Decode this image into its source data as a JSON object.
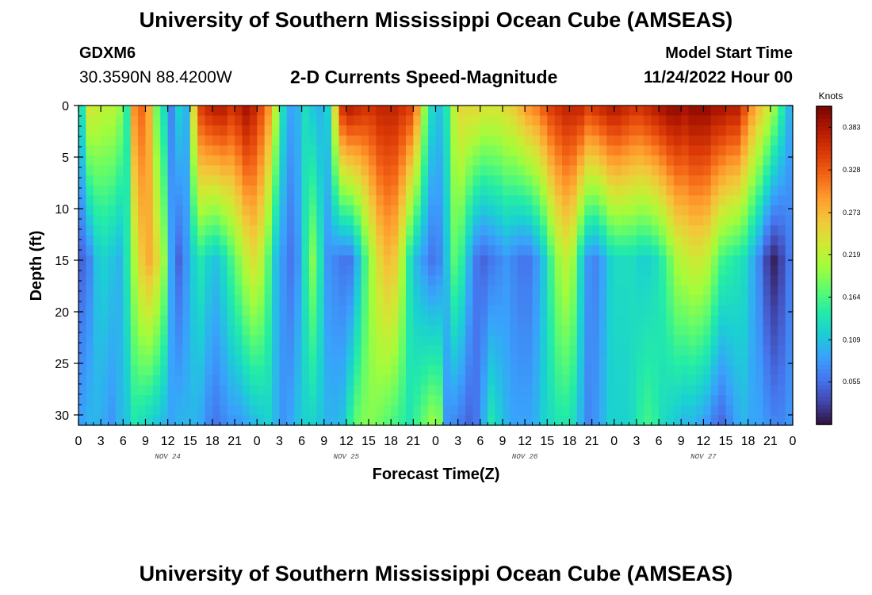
{
  "header": {
    "title": "University of Southern Mississippi Ocean Cube (AMSEAS)",
    "station": "GDXM6",
    "coords": "30.3590N  88.4200W",
    "subtitle": "2-D Currents Speed-Magnitude",
    "model_start_label": "Model Start Time",
    "model_start_value": "11/24/2022 Hour 00"
  },
  "footer": {
    "title": "University of Southern Mississippi Ocean Cube (AMSEAS)"
  },
  "chart_data": {
    "type": "heatmap",
    "title": "2-D Currents Speed-Magnitude",
    "xlabel": "Forecast Time(Z)",
    "ylabel": "Depth (ft)",
    "x_tick_labels": [
      "0",
      "3",
      "6",
      "9",
      "12",
      "15",
      "18",
      "21",
      "0",
      "3",
      "6",
      "9",
      "12",
      "15",
      "18",
      "21",
      "0",
      "3",
      "6",
      "9",
      "12",
      "15",
      "18",
      "21",
      "0",
      "3",
      "6",
      "9",
      "12",
      "15",
      "18",
      "21",
      "0"
    ],
    "day_labels": [
      "NOV 24",
      "NOV 25",
      "NOV 26",
      "NOV 27"
    ],
    "xlim_hours": [
      0,
      96
    ],
    "ylim": [
      31,
      0
    ],
    "y_ticks": [
      0,
      5,
      10,
      15,
      20,
      25,
      30
    ],
    "colorbar": {
      "unit": "Knots",
      "ticks": [
        0.383,
        0.328,
        0.273,
        0.219,
        0.164,
        0.109,
        0.055
      ],
      "range": [
        0.0,
        0.41
      ]
    },
    "colormap": [
      "#30123b",
      "#4145ab",
      "#4675ed",
      "#39a2fc",
      "#1bcfd4",
      "#24eca6",
      "#61fc6c",
      "#a4fc3b",
      "#d1e834",
      "#f3c63a",
      "#fe9b2d",
      "#f36315",
      "#d93806",
      "#b11901",
      "#7a0402"
    ],
    "columns": [
      {
        "t": 0,
        "surf": 0.14,
        "mid": 0.05,
        "bot": 0.09
      },
      {
        "t": 1,
        "surf": 0.24,
        "mid": 0.07,
        "bot": 0.1
      },
      {
        "t": 2,
        "surf": 0.23,
        "mid": 0.11,
        "bot": 0.1
      },
      {
        "t": 3,
        "surf": 0.22,
        "mid": 0.12,
        "bot": 0.09
      },
      {
        "t": 4,
        "surf": 0.22,
        "mid": 0.11,
        "bot": 0.08
      },
      {
        "t": 5,
        "surf": 0.2,
        "mid": 0.1,
        "bot": 0.1
      },
      {
        "t": 6,
        "surf": 0.15,
        "mid": 0.14,
        "bot": 0.11
      },
      {
        "t": 7,
        "surf": 0.3,
        "mid": 0.21,
        "bot": 0.14
      },
      {
        "t": 8,
        "surf": 0.32,
        "mid": 0.26,
        "bot": 0.13
      },
      {
        "t": 9,
        "surf": 0.28,
        "mid": 0.28,
        "bot": 0.12
      },
      {
        "t": 10,
        "surf": 0.18,
        "mid": 0.25,
        "bot": 0.11
      },
      {
        "t": 11,
        "surf": 0.13,
        "mid": 0.2,
        "bot": 0.1
      },
      {
        "t": 12,
        "surf": 0.07,
        "mid": 0.09,
        "bot": 0.09
      },
      {
        "t": 13,
        "surf": 0.12,
        "mid": 0.05,
        "bot": 0.1
      },
      {
        "t": 14,
        "surf": 0.1,
        "mid": 0.08,
        "bot": 0.1
      },
      {
        "t": 15,
        "surf": 0.25,
        "mid": 0.12,
        "bot": 0.1
      },
      {
        "t": 16,
        "surf": 0.35,
        "mid": 0.14,
        "bot": 0.09
      },
      {
        "t": 17,
        "surf": 0.37,
        "mid": 0.12,
        "bot": 0.07
      },
      {
        "t": 18,
        "surf": 0.38,
        "mid": 0.11,
        "bot": 0.06
      },
      {
        "t": 19,
        "surf": 0.38,
        "mid": 0.13,
        "bot": 0.07
      },
      {
        "t": 20,
        "surf": 0.36,
        "mid": 0.16,
        "bot": 0.08
      },
      {
        "t": 21,
        "surf": 0.37,
        "mid": 0.19,
        "bot": 0.08
      },
      {
        "t": 22,
        "surf": 0.39,
        "mid": 0.22,
        "bot": 0.09
      },
      {
        "t": 23,
        "surf": 0.37,
        "mid": 0.24,
        "bot": 0.1
      },
      {
        "t": 24,
        "surf": 0.34,
        "mid": 0.22,
        "bot": 0.11
      },
      {
        "t": 25,
        "surf": 0.3,
        "mid": 0.17,
        "bot": 0.12
      },
      {
        "t": 26,
        "surf": 0.22,
        "mid": 0.11,
        "bot": 0.1
      },
      {
        "t": 27,
        "surf": 0.13,
        "mid": 0.08,
        "bot": 0.08
      },
      {
        "t": 28,
        "surf": 0.09,
        "mid": 0.06,
        "bot": 0.09
      },
      {
        "t": 29,
        "surf": 0.1,
        "mid": 0.08,
        "bot": 0.11
      },
      {
        "t": 30,
        "surf": 0.13,
        "mid": 0.14,
        "bot": 0.12
      },
      {
        "t": 31,
        "surf": 0.11,
        "mid": 0.19,
        "bot": 0.12
      },
      {
        "t": 32,
        "surf": 0.1,
        "mid": 0.14,
        "bot": 0.11
      },
      {
        "t": 33,
        "surf": 0.12,
        "mid": 0.08,
        "bot": 0.1
      },
      {
        "t": 34,
        "surf": 0.25,
        "mid": 0.07,
        "bot": 0.1
      },
      {
        "t": 35,
        "surf": 0.36,
        "mid": 0.06,
        "bot": 0.11
      },
      {
        "t": 36,
        "surf": 0.38,
        "mid": 0.06,
        "bot": 0.15
      },
      {
        "t": 37,
        "surf": 0.37,
        "mid": 0.1,
        "bot": 0.18
      },
      {
        "t": 38,
        "surf": 0.36,
        "mid": 0.16,
        "bot": 0.19
      },
      {
        "t": 39,
        "surf": 0.36,
        "mid": 0.21,
        "bot": 0.19
      },
      {
        "t": 40,
        "surf": 0.37,
        "mid": 0.25,
        "bot": 0.18
      },
      {
        "t": 41,
        "surf": 0.37,
        "mid": 0.27,
        "bot": 0.17
      },
      {
        "t": 42,
        "surf": 0.37,
        "mid": 0.26,
        "bot": 0.16
      },
      {
        "t": 43,
        "surf": 0.36,
        "mid": 0.21,
        "bot": 0.15
      },
      {
        "t": 44,
        "surf": 0.35,
        "mid": 0.14,
        "bot": 0.14
      },
      {
        "t": 45,
        "surf": 0.3,
        "mid": 0.1,
        "bot": 0.16
      },
      {
        "t": 46,
        "surf": 0.2,
        "mid": 0.08,
        "bot": 0.18
      },
      {
        "t": 47,
        "surf": 0.13,
        "mid": 0.06,
        "bot": 0.2
      },
      {
        "t": 48,
        "surf": 0.11,
        "mid": 0.07,
        "bot": 0.19
      },
      {
        "t": 49,
        "surf": 0.14,
        "mid": 0.11,
        "bot": 0.08
      },
      {
        "t": 50,
        "surf": 0.22,
        "mid": 0.17,
        "bot": 0.07
      },
      {
        "t": 51,
        "surf": 0.25,
        "mid": 0.15,
        "bot": 0.06
      },
      {
        "t": 52,
        "surf": 0.25,
        "mid": 0.1,
        "bot": 0.05
      },
      {
        "t": 53,
        "surf": 0.25,
        "mid": 0.06,
        "bot": 0.06
      },
      {
        "t": 54,
        "surf": 0.24,
        "mid": 0.05,
        "bot": 0.1
      },
      {
        "t": 55,
        "surf": 0.24,
        "mid": 0.06,
        "bot": 0.14
      },
      {
        "t": 56,
        "surf": 0.24,
        "mid": 0.07,
        "bot": 0.12
      },
      {
        "t": 57,
        "surf": 0.25,
        "mid": 0.08,
        "bot": 0.1
      },
      {
        "t": 58,
        "surf": 0.26,
        "mid": 0.07,
        "bot": 0.09
      },
      {
        "t": 59,
        "surf": 0.28,
        "mid": 0.06,
        "bot": 0.09
      },
      {
        "t": 60,
        "surf": 0.3,
        "mid": 0.06,
        "bot": 0.09
      },
      {
        "t": 61,
        "surf": 0.31,
        "mid": 0.08,
        "bot": 0.1
      },
      {
        "t": 62,
        "surf": 0.33,
        "mid": 0.11,
        "bot": 0.12
      },
      {
        "t": 63,
        "surf": 0.35,
        "mid": 0.16,
        "bot": 0.13
      },
      {
        "t": 64,
        "surf": 0.36,
        "mid": 0.2,
        "bot": 0.14
      },
      {
        "t": 65,
        "surf": 0.37,
        "mid": 0.22,
        "bot": 0.14
      },
      {
        "t": 66,
        "surf": 0.37,
        "mid": 0.2,
        "bot": 0.13
      },
      {
        "t": 67,
        "surf": 0.37,
        "mid": 0.13,
        "bot": 0.1
      },
      {
        "t": 68,
        "surf": 0.35,
        "mid": 0.08,
        "bot": 0.07
      },
      {
        "t": 69,
        "surf": 0.36,
        "mid": 0.07,
        "bot": 0.08
      },
      {
        "t": 70,
        "surf": 0.37,
        "mid": 0.09,
        "bot": 0.1
      },
      {
        "t": 71,
        "surf": 0.38,
        "mid": 0.12,
        "bot": 0.12
      },
      {
        "t": 72,
        "surf": 0.38,
        "mid": 0.13,
        "bot": 0.12
      },
      {
        "t": 73,
        "surf": 0.37,
        "mid": 0.13,
        "bot": 0.12
      },
      {
        "t": 74,
        "surf": 0.36,
        "mid": 0.13,
        "bot": 0.13
      },
      {
        "t": 75,
        "surf": 0.36,
        "mid": 0.12,
        "bot": 0.15
      },
      {
        "t": 76,
        "surf": 0.37,
        "mid": 0.12,
        "bot": 0.16
      },
      {
        "t": 77,
        "surf": 0.38,
        "mid": 0.13,
        "bot": 0.15
      },
      {
        "t": 78,
        "surf": 0.39,
        "mid": 0.15,
        "bot": 0.13
      },
      {
        "t": 79,
        "surf": 0.4,
        "mid": 0.18,
        "bot": 0.12
      },
      {
        "t": 80,
        "surf": 0.4,
        "mid": 0.21,
        "bot": 0.11
      },
      {
        "t": 81,
        "surf": 0.39,
        "mid": 0.22,
        "bot": 0.1
      },
      {
        "t": 82,
        "surf": 0.4,
        "mid": 0.23,
        "bot": 0.1
      },
      {
        "t": 83,
        "surf": 0.4,
        "mid": 0.23,
        "bot": 0.09
      },
      {
        "t": 84,
        "surf": 0.4,
        "mid": 0.22,
        "bot": 0.08
      },
      {
        "t": 85,
        "surf": 0.39,
        "mid": 0.19,
        "bot": 0.06
      },
      {
        "t": 86,
        "surf": 0.39,
        "mid": 0.16,
        "bot": 0.05
      },
      {
        "t": 87,
        "surf": 0.38,
        "mid": 0.15,
        "bot": 0.07
      },
      {
        "t": 88,
        "surf": 0.38,
        "mid": 0.14,
        "bot": 0.09
      },
      {
        "t": 89,
        "surf": 0.34,
        "mid": 0.13,
        "bot": 0.1
      },
      {
        "t": 90,
        "surf": 0.3,
        "mid": 0.1,
        "bot": 0.09
      },
      {
        "t": 91,
        "surf": 0.27,
        "mid": 0.07,
        "bot": 0.09
      },
      {
        "t": 92,
        "surf": 0.24,
        "mid": 0.03,
        "bot": 0.08
      },
      {
        "t": 93,
        "surf": 0.2,
        "mid": 0.01,
        "bot": 0.07
      },
      {
        "t": 94,
        "surf": 0.15,
        "mid": 0.03,
        "bot": 0.07
      },
      {
        "t": 95,
        "surf": 0.1,
        "mid": 0.06,
        "bot": 0.08
      }
    ]
  }
}
